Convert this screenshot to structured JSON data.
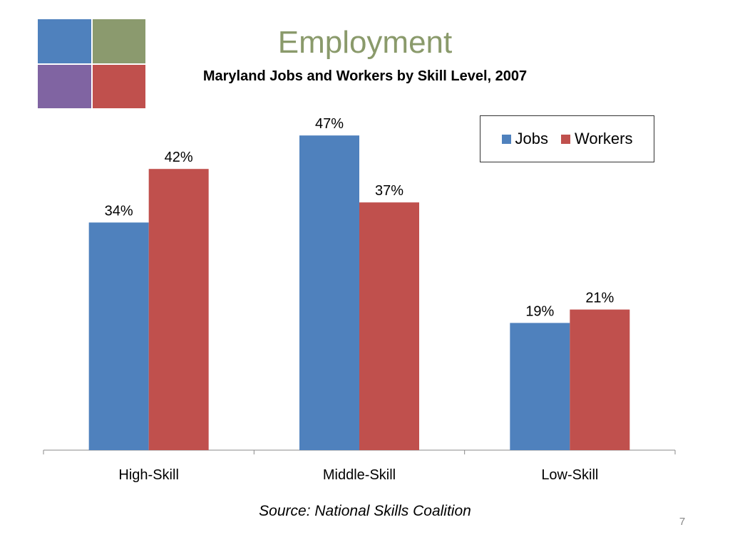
{
  "slide": {
    "title": "Employment",
    "subtitle": "Maryland Jobs and Workers by Skill Level, 2007",
    "source": "Source: National Skills Coalition",
    "page_number": "7",
    "logo_colors": [
      "#4f81bd",
      "#8b9a6e",
      "#8064a2",
      "#c0504d"
    ]
  },
  "chart_data": {
    "type": "bar",
    "title": "Maryland Jobs and Workers by Skill Level, 2007",
    "categories": [
      "High-Skill",
      "Middle-Skill",
      "Low-Skill"
    ],
    "series": [
      {
        "name": "Jobs",
        "values": [
          34,
          47,
          19
        ],
        "labels": [
          "34%",
          "47%",
          "19%"
        ],
        "color": "#4f81bd"
      },
      {
        "name": "Workers",
        "values": [
          42,
          37,
          21
        ],
        "labels": [
          "42%",
          "37%",
          "21%"
        ],
        "color": "#c0504d"
      }
    ],
    "ylim": [
      0,
      50
    ],
    "grid": false,
    "legend": "top-right"
  }
}
